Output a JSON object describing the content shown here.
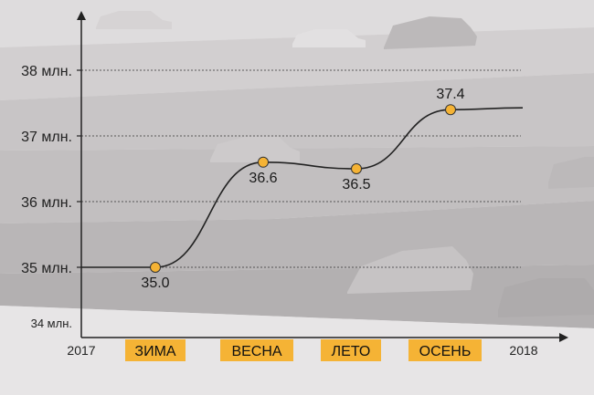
{
  "chart_data": {
    "type": "line",
    "x_start_label": "2017",
    "x_end_label": "2018",
    "categories": [
      "ЗИМА",
      "ВЕСНА",
      "ЛЕТО",
      "ОСЕНЬ"
    ],
    "values": [
      35.0,
      36.6,
      36.5,
      37.4
    ],
    "data_labels": [
      "35.0",
      "36.6",
      "36.5",
      "37.4"
    ],
    "y_ticks": [
      {
        "value": 34,
        "label": "34 млн."
      },
      {
        "value": 35,
        "label": "35 млн."
      },
      {
        "value": 36,
        "label": "36 млн."
      },
      {
        "value": 37,
        "label": "37 млн."
      },
      {
        "value": 38,
        "label": "38 млн."
      }
    ],
    "ylim": [
      34,
      38.6
    ],
    "grid": "dashed horizontal",
    "colors": {
      "marker": "#f5b335",
      "season_badge": "#f5b335",
      "line": "#222222"
    }
  }
}
